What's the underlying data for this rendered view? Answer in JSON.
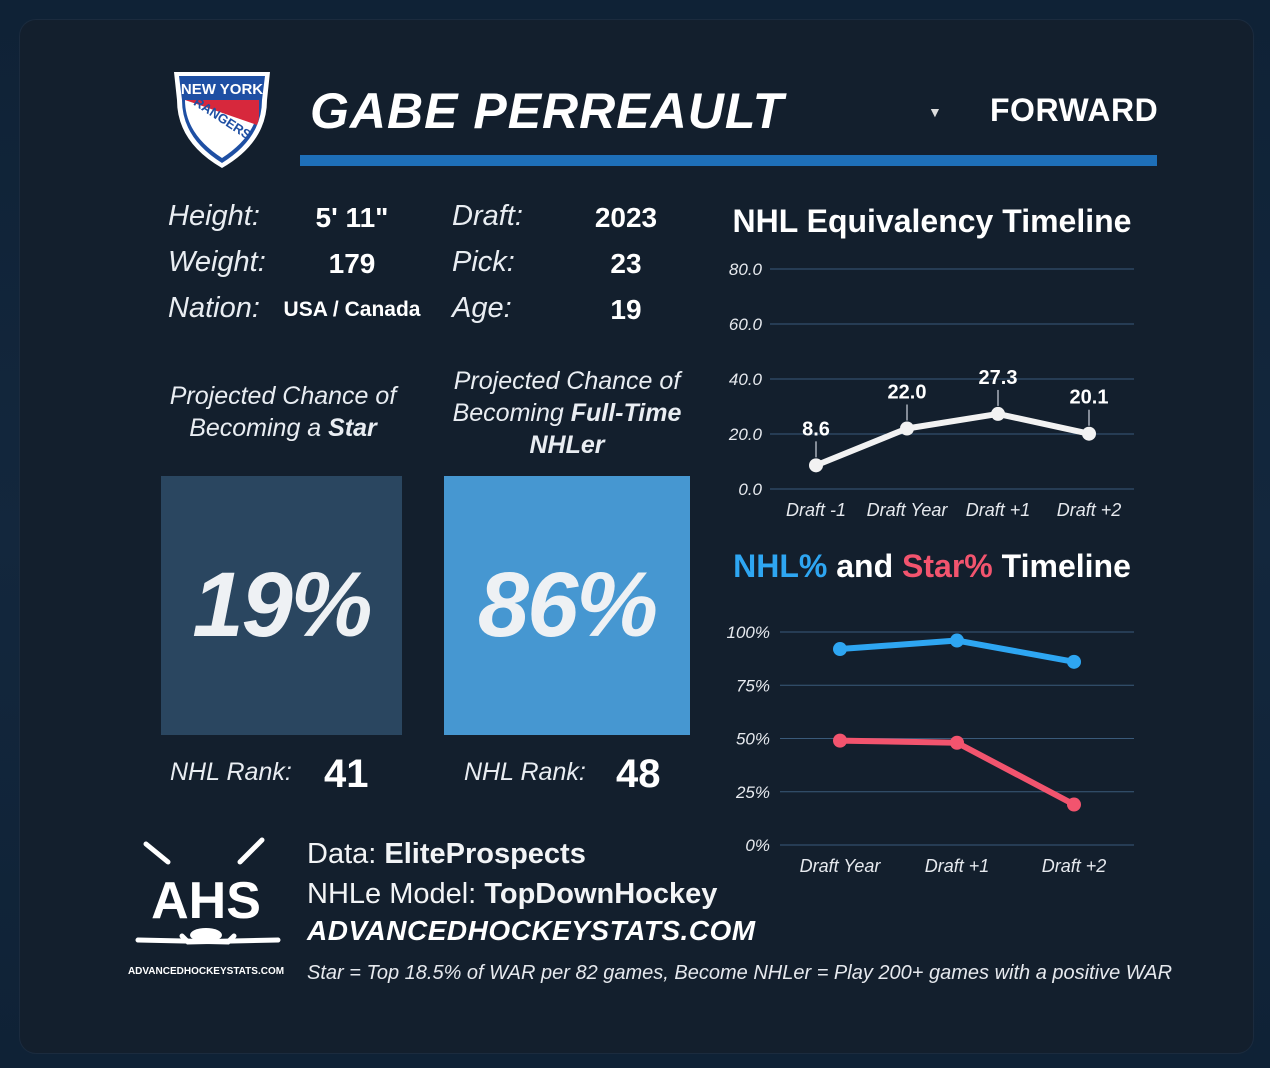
{
  "header": {
    "team_logo": "new-york-rangers-logo",
    "team_logo_text_top": "NEW YORK",
    "team_logo_text_mid": "RANGERS",
    "player_name": "GABE PERREAULT",
    "position": "FORWARD",
    "dropdown_icon": "caret-down"
  },
  "bio": {
    "height_label": "Height:",
    "height": "5' 11\"",
    "weight_label": "Weight:",
    "weight": "179",
    "nation_label": "Nation:",
    "nation": "USA / Canada",
    "draft_label": "Draft:",
    "draft": "2023",
    "pick_label": "Pick:",
    "pick": "23",
    "age_label": "Age:",
    "age": "19"
  },
  "projections": {
    "star": {
      "caption_line1": "Projected Chance of",
      "caption_line2_prefix": "Becoming a ",
      "caption_line2_bold": "Star",
      "value": "19%",
      "rank_label": "NHL Rank:",
      "rank": "41",
      "color": "#2a4660"
    },
    "nhler": {
      "caption_line1": "Projected Chance of",
      "caption_line2_prefix": "Becoming ",
      "caption_line2_bold": "Full-Time",
      "caption_line3_bold": "NHLer",
      "value": "86%",
      "rank_label": "NHL Rank:",
      "rank": "48",
      "color": "#4697d1"
    }
  },
  "chart_data": [
    {
      "type": "line",
      "title": "NHL Equivalency Timeline",
      "categories": [
        "Draft -1",
        "Draft Year",
        "Draft +1",
        "Draft +2"
      ],
      "yticks": [
        "0.0",
        "20.0",
        "40.0",
        "60.0",
        "80.0"
      ],
      "ylim": [
        0,
        80
      ],
      "series": [
        {
          "values": [
            8.6,
            22.0,
            27.3,
            20.1
          ],
          "labels": [
            "8.6",
            "22.0",
            "27.3",
            "20.1"
          ],
          "color": "#f2f2f2"
        }
      ],
      "grid": true
    },
    {
      "type": "line",
      "title_parts": [
        "NHL%",
        " and ",
        "Star%",
        " Timeline"
      ],
      "title_colors": [
        "#2ea6f2",
        "#ffffff",
        "#f2546e",
        "#ffffff"
      ],
      "categories": [
        "Draft Year",
        "Draft +1",
        "Draft +2"
      ],
      "yticks": [
        "0%",
        "25%",
        "50%",
        "75%",
        "100%"
      ],
      "ylim": [
        0,
        100
      ],
      "series": [
        {
          "values": [
            92,
            96,
            86
          ],
          "color": "#2ea6f2"
        },
        {
          "values": [
            49,
            48,
            19
          ],
          "color": "#f2546e"
        }
      ],
      "grid": true
    }
  ],
  "footer": {
    "ahs_logo_text": "AHS",
    "ahs_logo_caption": "ADVANCEDHOCKEYSTATS.COM",
    "data_label": "Data: ",
    "data_source": "EliteProspects",
    "model_label": "NHLe Model: ",
    "model_source": "TopDownHockey",
    "site": "ADVANCEDHOCKEYSTATS.COM",
    "note": "Star = Top 18.5% of WAR per 82 games, Become NHLer = Play 200+ games with a positive WAR"
  }
}
